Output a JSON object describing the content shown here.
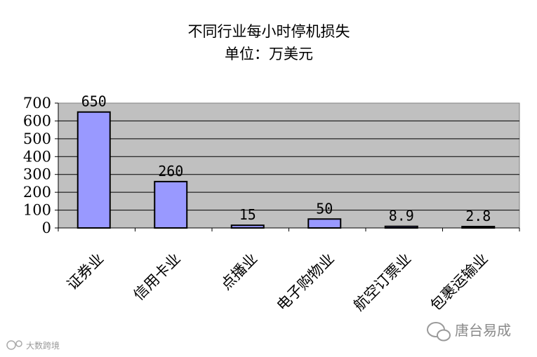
{
  "chart_data": {
    "type": "bar",
    "title": "不同行业每小时停机损失",
    "subtitle": "单位：万美元",
    "categories": [
      "证券业",
      "信用卡业",
      "点播业",
      "电子购物业",
      "航空订票业",
      "包裹运输业"
    ],
    "values": [
      650,
      260,
      15,
      50,
      8.9,
      2.8
    ],
    "data_labels": [
      "650",
      "260",
      "15",
      "50",
      "8.9",
      "2.8"
    ],
    "ylim": [
      0,
      700
    ],
    "yticks": [
      "0",
      "100",
      "200",
      "300",
      "400",
      "500",
      "600",
      "700"
    ],
    "grid": true,
    "bar_color": "#9999ff",
    "plot_bg": "#c0c0c0",
    "xlabel": "",
    "ylabel": ""
  },
  "watermark": {
    "brand": "唐台易成",
    "corner": "大数跨境"
  }
}
